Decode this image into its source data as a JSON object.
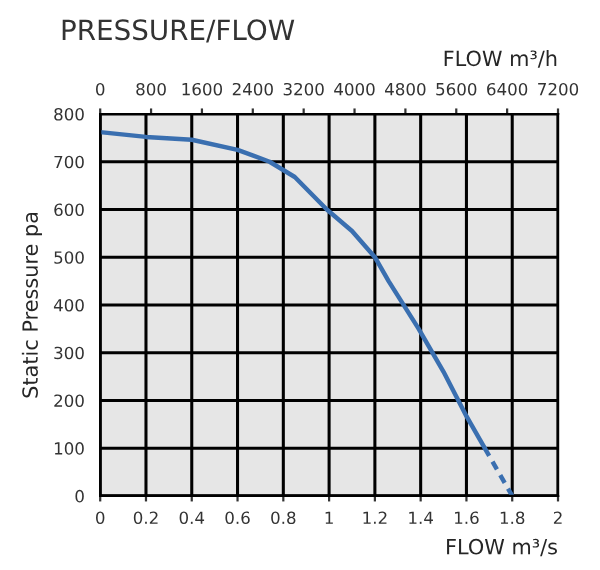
{
  "chart_data": {
    "type": "line",
    "title": "PRESSURE/FLOW",
    "xlabel": "FLOW m³/s",
    "x2label": "FLOW m³/h",
    "ylabel": "Static Pressure pa",
    "series": [
      {
        "color": "#3a6fb0",
        "line_style": "solid",
        "x": [
          0,
          0.2,
          0.4,
          0.6,
          0.74,
          0.85,
          0.99,
          1.1,
          1.2,
          1.26,
          1.39,
          1.5,
          1.6,
          1.68
        ],
        "values": [
          762,
          752,
          746,
          725,
          700,
          668,
          600,
          555,
          500,
          450,
          351,
          260,
          167,
          100
        ]
      },
      {
        "color": "#3a6fb0",
        "line_style": "dashed",
        "x": [
          1.68,
          1.74,
          1.8
        ],
        "values": [
          100,
          50,
          0
        ]
      }
    ],
    "xlim": [
      0,
      2
    ],
    "xticks": [
      0,
      0.2,
      0.4,
      0.6,
      0.8,
      1,
      1.2,
      1.4,
      1.6,
      1.8,
      2
    ],
    "x2lim": [
      0,
      7200
    ],
    "x2ticks": [
      0,
      800,
      1600,
      2400,
      3200,
      4000,
      4800,
      5600,
      6400,
      7200
    ],
    "ylim": [
      0,
      800
    ],
    "yticks": [
      0,
      100,
      200,
      300,
      400,
      500,
      600,
      700,
      800
    ],
    "grid": true,
    "legend": false
  }
}
